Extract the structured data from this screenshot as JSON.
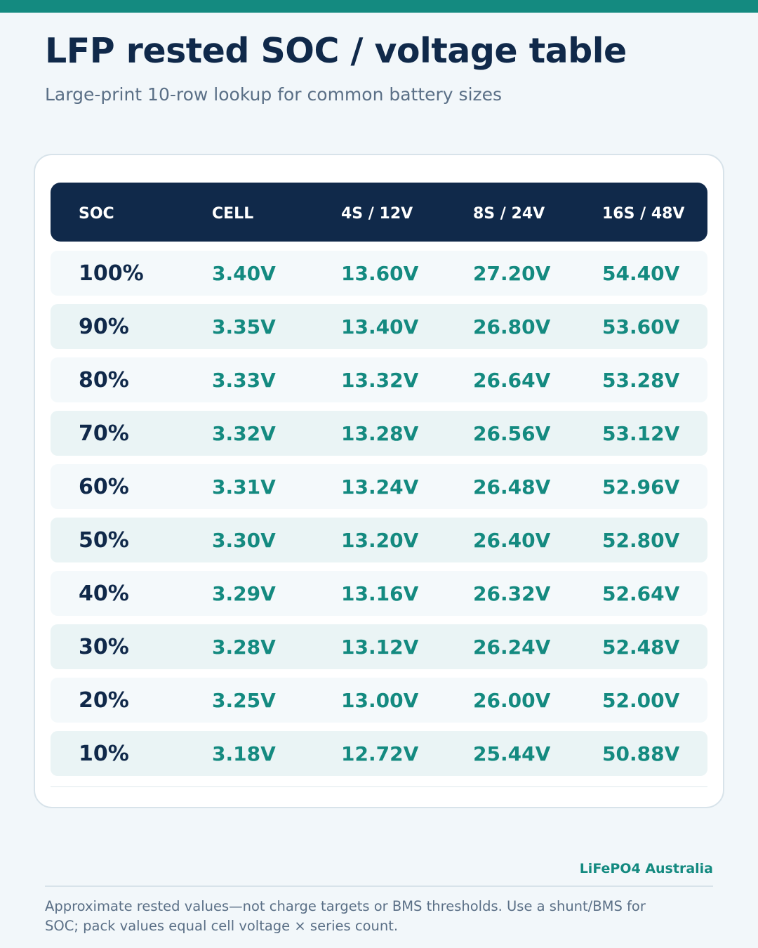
{
  "title": "LFP rested SOC / voltage table",
  "subtitle": "Large-print 10-row lookup for common battery sizes",
  "table": {
    "headers": [
      "SOC",
      "CELL",
      "4S / 12V",
      "8S / 24V",
      "16S / 48V"
    ],
    "rows": [
      [
        "100%",
        "3.40V",
        "13.60V",
        "27.20V",
        "54.40V"
      ],
      [
        "90%",
        "3.35V",
        "13.40V",
        "26.80V",
        "53.60V"
      ],
      [
        "80%",
        "3.33V",
        "13.32V",
        "26.64V",
        "53.28V"
      ],
      [
        "70%",
        "3.32V",
        "13.28V",
        "26.56V",
        "53.12V"
      ],
      [
        "60%",
        "3.31V",
        "13.24V",
        "26.48V",
        "52.96V"
      ],
      [
        "50%",
        "3.30V",
        "13.20V",
        "26.40V",
        "52.80V"
      ],
      [
        "40%",
        "3.29V",
        "13.16V",
        "26.32V",
        "52.64V"
      ],
      [
        "30%",
        "3.28V",
        "13.12V",
        "26.24V",
        "52.48V"
      ],
      [
        "20%",
        "3.25V",
        "13.00V",
        "26.00V",
        "52.00V"
      ],
      [
        "10%",
        "3.18V",
        "12.72V",
        "25.44V",
        "50.88V"
      ]
    ]
  },
  "brand": "LiFePO4 Australia",
  "footnote": "Approximate rested values—not charge targets or BMS thresholds. Use a shunt/BMS for SOC; pack values equal cell voltage × series count.",
  "colors": {
    "accent": "#148a80",
    "navy": "#10294a",
    "background": "#f2f7fa",
    "muted_text": "#5a6f86"
  }
}
